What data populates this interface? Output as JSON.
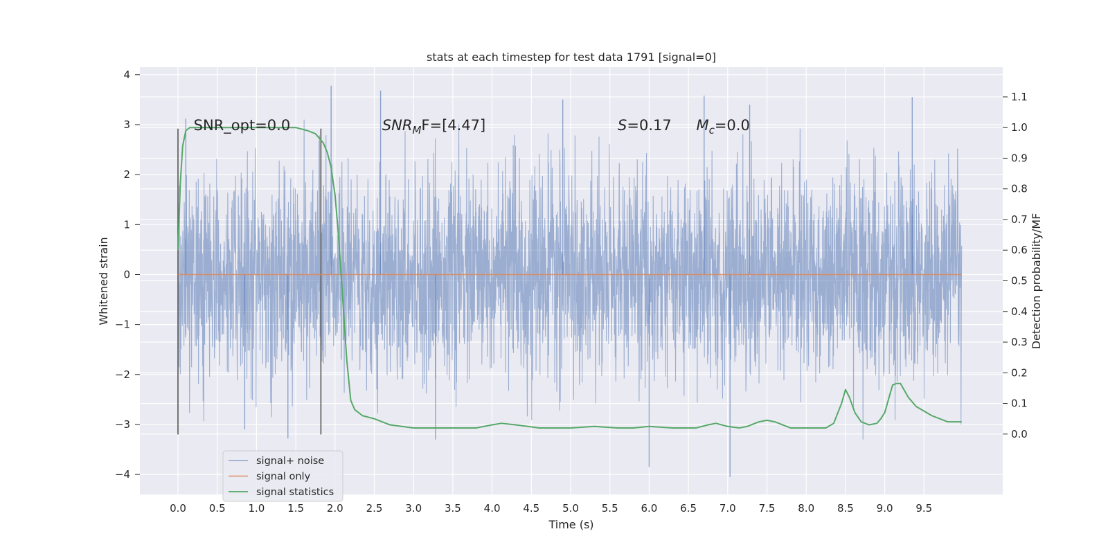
{
  "chart_data": {
    "type": "line",
    "title": "stats at each timestep for test data 1791 [signal=0]",
    "xlabel": "Time (s)",
    "ylabel": "Whitened strain",
    "y2label": "Detection probability/MF",
    "xlim": [
      -0.5,
      10.5
    ],
    "ylim": [
      -4.4,
      4.15
    ],
    "y2lim": [
      -0.197,
      1.197
    ],
    "x_ticks": [
      0.0,
      0.5,
      1.0,
      1.5,
      2.0,
      2.5,
      3.0,
      3.5,
      4.0,
      4.5,
      5.0,
      5.5,
      6.0,
      6.5,
      7.0,
      7.5,
      8.0,
      8.5,
      9.0,
      9.5
    ],
    "x_tick_labels": [
      "0.0",
      "0.5",
      "1.0",
      "1.5",
      "2.0",
      "2.5",
      "3.0",
      "3.5",
      "4.0",
      "4.5",
      "5.0",
      "5.5",
      "6.0",
      "6.5",
      "7.0",
      "7.5",
      "8.0",
      "8.5",
      "9.0",
      "9.5"
    ],
    "y_ticks": [
      -4,
      -3,
      -2,
      -1,
      0,
      1,
      2,
      3,
      4
    ],
    "y_tick_labels": [
      "−4",
      "−3",
      "−2",
      "−1",
      "0",
      "1",
      "2",
      "3",
      "4"
    ],
    "y2_ticks": [
      0.0,
      0.1,
      0.2,
      0.3,
      0.4,
      0.5,
      0.6,
      0.7,
      0.8,
      0.9,
      1.0,
      1.1
    ],
    "y2_tick_labels": [
      "0.0",
      "0.1",
      "0.2",
      "0.3",
      "0.4",
      "0.5",
      "0.6",
      "0.7",
      "0.8",
      "0.9",
      "1.0",
      "1.1"
    ],
    "grid": true,
    "legend_position": "lower-left",
    "annotations": [
      {
        "base": "SNR_opt=0.0",
        "sub": "",
        "rest": "",
        "italic": false,
        "x": 0.2,
        "y": 3.0
      },
      {
        "base": "SNR",
        "sub": "M",
        "rest": "F=[4.47]",
        "italic": true,
        "x": 2.6,
        "y": 3.0
      },
      {
        "base": "S",
        "sub": "",
        "rest": "=0.17",
        "italic": true,
        "x": 5.6,
        "y": 3.0
      },
      {
        "base": "M",
        "sub": "c",
        "rest": "=0.0",
        "italic": true,
        "x": 6.6,
        "y": 3.0
      }
    ],
    "vertical_markers": [
      {
        "x": 0.0,
        "y_from": -3.2,
        "y_to": 2.92
      },
      {
        "x": 1.82,
        "y_from": -3.2,
        "y_to": 2.92
      }
    ],
    "series": [
      {
        "name": "signal+ noise",
        "color": "#4c72b0",
        "style": "noise",
        "x_range": [
          0.0,
          9.98
        ],
        "core_band": [
          -1.2,
          1.15
        ],
        "notable_peaks": [
          {
            "x": 1.95,
            "y": 3.78
          },
          {
            "x": 2.58,
            "y": 3.68
          },
          {
            "x": 6.7,
            "y": 3.58
          },
          {
            "x": 9.35,
            "y": 3.55
          },
          {
            "x": 4.9,
            "y": 3.5
          },
          {
            "x": 7.28,
            "y": 3.4
          },
          {
            "x": 0.1,
            "y": 3.12
          },
          {
            "x": 7.03,
            "y": -4.05
          },
          {
            "x": 6.0,
            "y": -3.85
          },
          {
            "x": 1.4,
            "y": -3.28
          },
          {
            "x": 3.28,
            "y": -3.3
          },
          {
            "x": 0.85,
            "y": -3.1
          }
        ]
      },
      {
        "name": "signal only",
        "color": "#dd8452",
        "x": [
          0.0,
          9.98
        ],
        "y": [
          0.0,
          0.0
        ]
      },
      {
        "name": "signal statistics",
        "color": "#55a868",
        "axis": "right",
        "x": [
          0.0,
          0.03,
          0.06,
          0.1,
          0.15,
          0.25,
          0.5,
          1.0,
          1.5,
          1.65,
          1.75,
          1.85,
          1.9,
          1.95,
          2.0,
          2.05,
          2.1,
          2.15,
          2.2,
          2.25,
          2.35,
          2.5,
          2.7,
          3.0,
          3.5,
          3.8,
          4.0,
          4.12,
          4.3,
          4.6,
          5.0,
          5.3,
          5.6,
          5.8,
          6.0,
          6.3,
          6.6,
          6.75,
          6.85,
          7.0,
          7.15,
          7.25,
          7.4,
          7.5,
          7.6,
          7.8,
          8.0,
          8.25,
          8.35,
          8.45,
          8.5,
          8.55,
          8.62,
          8.7,
          8.8,
          8.9,
          8.95,
          9.0,
          9.1,
          9.15,
          9.2,
          9.3,
          9.4,
          9.6,
          9.8,
          9.98
        ],
        "y": [
          0.6,
          0.82,
          0.94,
          0.99,
          1.0,
          1.0,
          1.0,
          1.0,
          1.0,
          0.99,
          0.98,
          0.95,
          0.92,
          0.87,
          0.78,
          0.63,
          0.43,
          0.24,
          0.11,
          0.08,
          0.06,
          0.05,
          0.03,
          0.02,
          0.02,
          0.02,
          0.03,
          0.035,
          0.03,
          0.02,
          0.02,
          0.025,
          0.02,
          0.02,
          0.025,
          0.02,
          0.02,
          0.03,
          0.035,
          0.025,
          0.02,
          0.025,
          0.04,
          0.045,
          0.04,
          0.02,
          0.02,
          0.02,
          0.035,
          0.1,
          0.145,
          0.12,
          0.07,
          0.04,
          0.03,
          0.035,
          0.05,
          0.07,
          0.16,
          0.165,
          0.165,
          0.12,
          0.09,
          0.06,
          0.04,
          0.04
        ]
      }
    ]
  }
}
